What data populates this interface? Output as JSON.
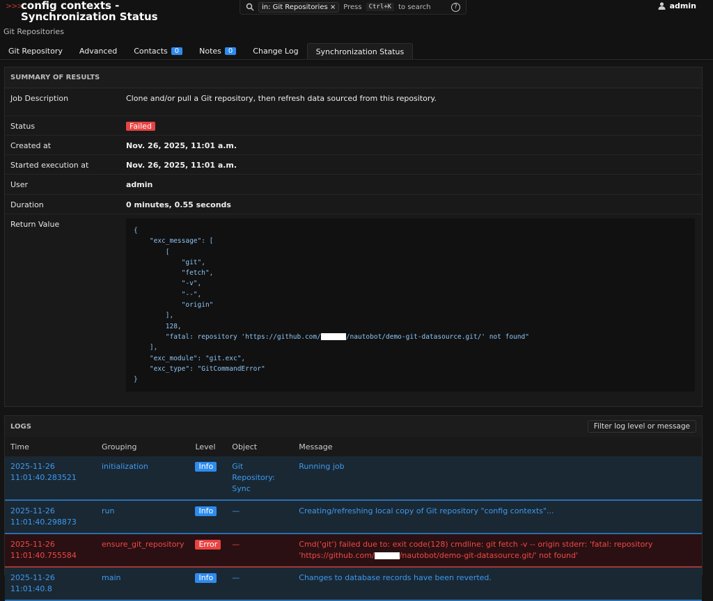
{
  "header": {
    "chevron": ">>>",
    "title": "config contexts - Synchronization Status",
    "breadcrumb": "Git Repositories"
  },
  "search": {
    "scope": "in: Git Repositories",
    "scope_close": "×",
    "press": "Press",
    "shortcut": "Ctrl+K",
    "to_search": "to search",
    "help": "?"
  },
  "user": {
    "name": "admin"
  },
  "tabs": [
    {
      "label": "Git Repository"
    },
    {
      "label": "Advanced"
    },
    {
      "label": "Contacts",
      "count": "0"
    },
    {
      "label": "Notes",
      "count": "0"
    },
    {
      "label": "Change Log"
    },
    {
      "label": "Synchronization Status",
      "active": true
    }
  ],
  "summary": {
    "heading": "SUMMARY OF RESULTS",
    "job_description_label": "Job Description",
    "job_description": "Clone and/or pull a Git repository, then refresh data sourced from this repository.",
    "status_label": "Status",
    "status": "Failed",
    "created_label": "Created at",
    "created": "Nov. 26, 2025, 11:01 a.m.",
    "started_label": "Started execution at",
    "started": "Nov. 26, 2025, 11:01 a.m.",
    "user_label": "User",
    "user": "admin",
    "duration_label": "Duration",
    "duration": "0 minutes, 0.55 seconds",
    "return_label": "Return Value",
    "return_lines": [
      "{",
      "    \"exc_message\": [",
      "        [",
      "            \"git\",",
      "            \"fetch\",",
      "            \"-v\",",
      "            \"--\",",
      "            \"origin\"",
      "        ],",
      "        128,"
    ],
    "return_fatal_before": "        \"fatal: repository 'https://github.com/",
    "return_fatal_after": "/nautobot/demo-git-datasource.git/' not found\"",
    "return_tail": [
      "    ],",
      "    \"exc_module\": \"git.exc\",",
      "    \"exc_type\": \"GitCommandError\"",
      "}"
    ]
  },
  "logs": {
    "heading": "LOGS",
    "filter": "Filter log level or message",
    "columns": [
      "Time",
      "Grouping",
      "Level",
      "Object",
      "Message"
    ],
    "rows": [
      {
        "date": "2025-11-26",
        "time": "11:01:40.283521",
        "grouping": "initialization",
        "level": "Info",
        "object": "Git Repository: Sync",
        "message": "Running job"
      },
      {
        "date": "2025-11-26",
        "time": "11:01:40.298873",
        "grouping": "run",
        "level": "Info",
        "object": "—",
        "message": "Creating/refreshing local copy of Git repository \"config contexts\"..."
      },
      {
        "date": "2025-11-26",
        "time": "11:01:40.755584",
        "grouping": "ensure_git_repository",
        "level": "Error",
        "object": "—",
        "message": "Cmd('git') failed due to: exit code(128) cmdline: git fetch -v -- origin stderr: 'fatal: repository",
        "message_before": "'https://github.com/",
        "message_after": "/nautobot/demo-git-datasource.git/' not found'"
      },
      {
        "date": "2025-11-26",
        "time": "11:01:40.8",
        "grouping": "main",
        "level": "Info",
        "object": "—",
        "message": "Changes to database records have been reverted."
      }
    ]
  },
  "colors": {
    "accent": "#2e8bef",
    "error": "#e84343",
    "info_row": "#1a2833",
    "error_row": "#2a1012"
  }
}
